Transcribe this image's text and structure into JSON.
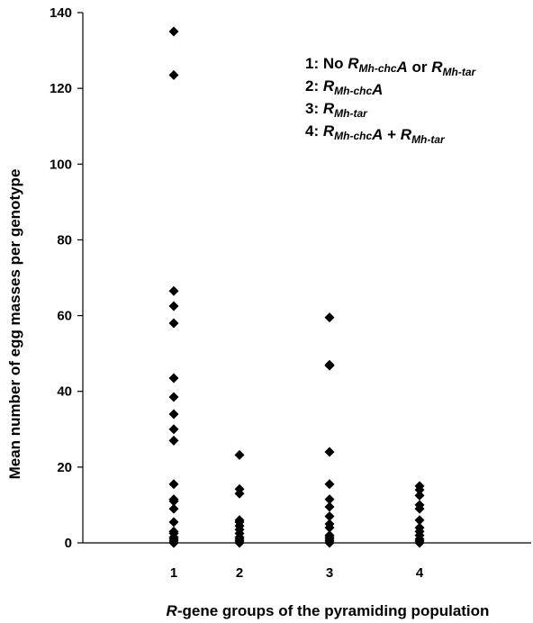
{
  "chart_data": {
    "type": "scatter",
    "title": "",
    "xlabel_italic": "R",
    "xlabel_rest": "-gene groups of the pyramiding population",
    "ylabel": "Mean number of egg masses per genotype",
    "ylim": [
      0,
      140
    ],
    "yticks": [
      "0",
      "20",
      "40",
      "60",
      "80",
      "100",
      "120",
      "140"
    ],
    "xticks": [
      "1",
      "2",
      "3",
      "4"
    ],
    "grid": false,
    "marker": "diamond",
    "marker_color": "#000000",
    "legend_position": "top-right",
    "legend": [
      {
        "prefix": "1: No ",
        "g1": "R",
        "s1": "Mh-chc",
        "a1": "A",
        "mid": " or ",
        "g2": "R",
        "s2": "Mh-tar",
        "a2": ""
      },
      {
        "prefix": "2: ",
        "g1": "R",
        "s1": "Mh-chc",
        "a1": "A",
        "mid": "",
        "g2": "",
        "s2": "",
        "a2": ""
      },
      {
        "prefix": "3: ",
        "g1": "R",
        "s1": "Mh-tar",
        "a1": "",
        "mid": "",
        "g2": "",
        "s2": "",
        "a2": ""
      },
      {
        "prefix": "4: ",
        "g1": "R",
        "s1": "Mh-chc",
        "a1": "A",
        "mid": " + ",
        "g2": "R",
        "s2": "Mh-tar",
        "a2": ""
      }
    ],
    "series": [
      {
        "x": 1,
        "values": [
          135,
          123.5,
          66.5,
          62.5,
          58,
          43.5,
          38.5,
          34,
          30,
          27,
          15.5,
          11.5,
          11,
          9,
          5.5,
          3,
          2.5,
          1.5,
          1,
          0.5,
          0,
          0
        ]
      },
      {
        "x": 2,
        "values": [
          23.2,
          14.2,
          13,
          6,
          5.5,
          4.5,
          3.5,
          2.5,
          1.5,
          1,
          0.5,
          0
        ]
      },
      {
        "x": 3,
        "values": [
          59.5,
          47,
          46.8,
          24,
          15.5,
          11.5,
          9.5,
          7,
          5,
          4,
          2,
          1.5,
          1,
          0.5,
          0
        ]
      },
      {
        "x": 4,
        "values": [
          15,
          14,
          12.5,
          10,
          9,
          6,
          4,
          3,
          2,
          1,
          0.5,
          0
        ]
      }
    ]
  }
}
